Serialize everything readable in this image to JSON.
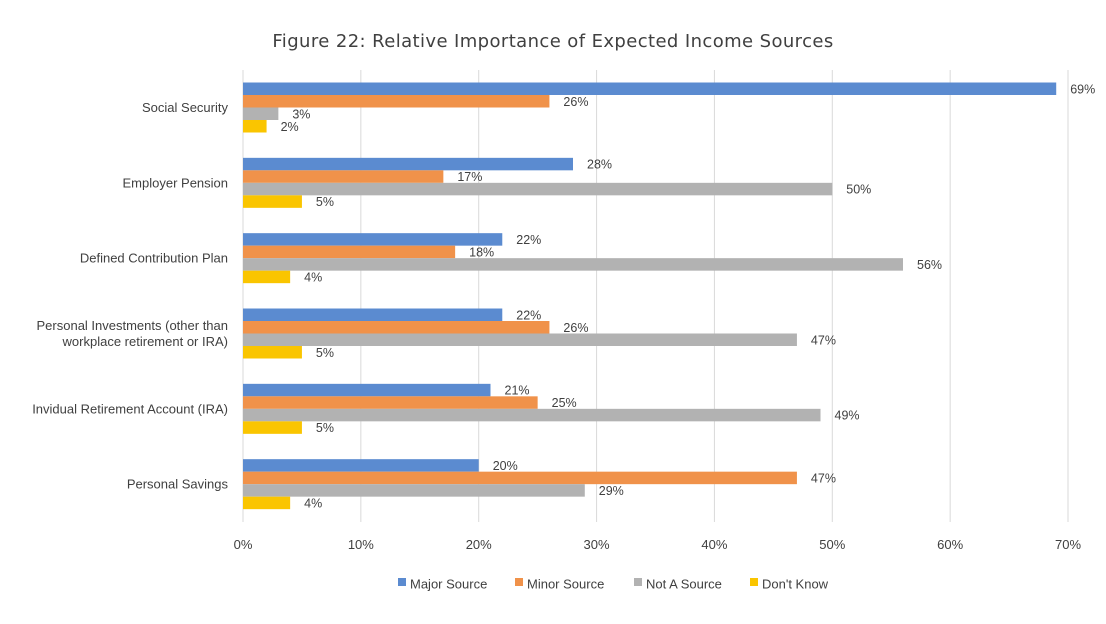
{
  "chart_data": {
    "type": "bar",
    "orientation": "horizontal",
    "title": "Figure 22: Relative Importance of Expected Income Sources",
    "categories": [
      [
        "Social Security"
      ],
      [
        "Employer Pension"
      ],
      [
        "Defined Contribution Plan"
      ],
      [
        "Personal Investments (other than",
        "workplace retirement or IRA)"
      ],
      [
        "Invidual Retirement Account (IRA)"
      ],
      [
        "Personal Savings"
      ]
    ],
    "series": [
      {
        "name": "Major Source",
        "color": "#5b8bd0",
        "values": [
          69,
          28,
          22,
          22,
          21,
          20
        ]
      },
      {
        "name": "Minor Source",
        "color": "#f0924a",
        "values": [
          26,
          17,
          18,
          26,
          25,
          47
        ]
      },
      {
        "name": "Not A Source",
        "color": "#b2b2b2",
        "values": [
          3,
          50,
          56,
          47,
          49,
          29
        ]
      },
      {
        "name": "Don't Know",
        "color": "#fac500",
        "values": [
          2,
          5,
          4,
          5,
          5,
          4
        ]
      }
    ],
    "xlim": [
      0,
      70
    ],
    "xticks": [
      0,
      10,
      20,
      30,
      40,
      50,
      60,
      70
    ],
    "tick_suffix": "%",
    "value_suffix": "%",
    "grid": true,
    "legend_position": "bottom"
  }
}
